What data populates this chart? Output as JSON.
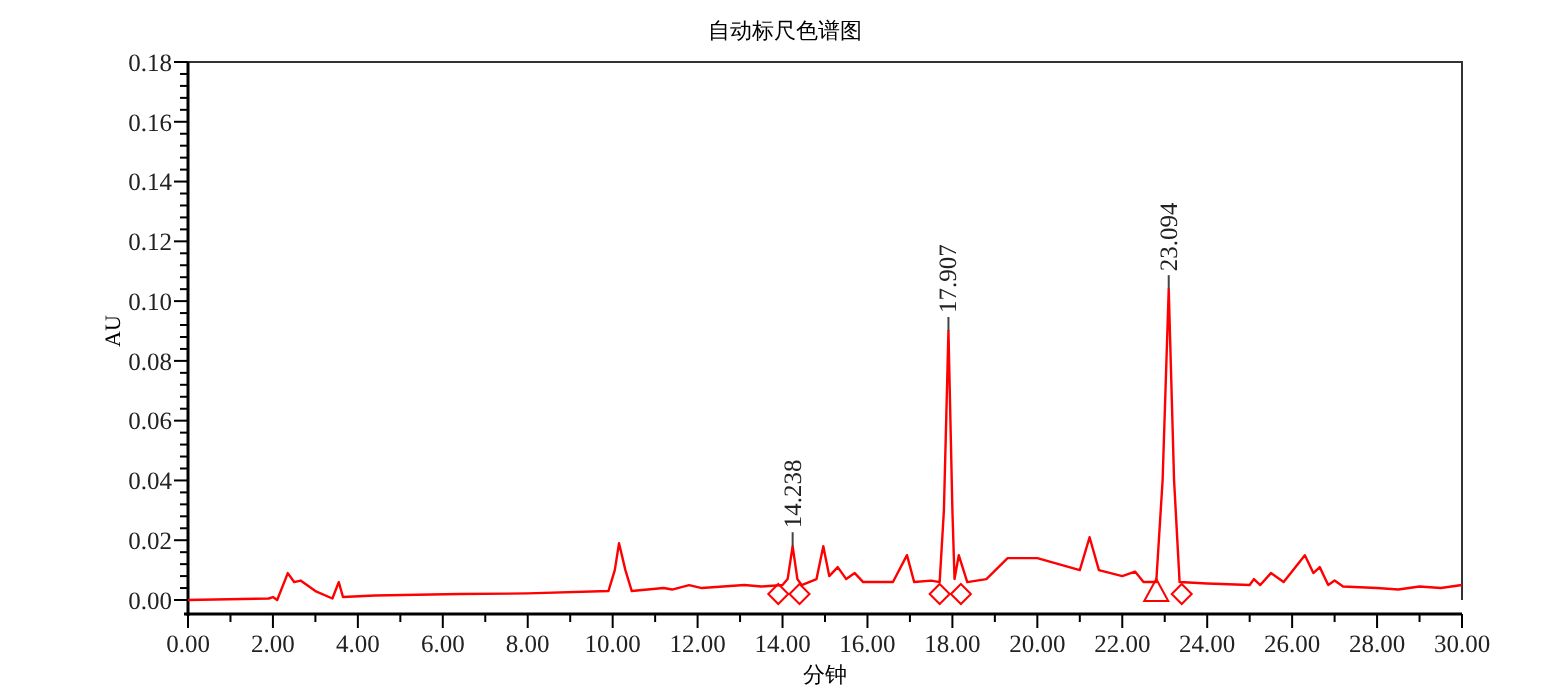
{
  "chart_data": {
    "type": "line",
    "title": "自动标尺色谱图",
    "xlabel": "分钟",
    "ylabel": "AU",
    "grid": false,
    "marker": "none",
    "line_style": "solid",
    "xlim": [
      0,
      30
    ],
    "ylim": [
      0,
      0.18
    ],
    "xticks": [
      {
        "value": 0,
        "label": "0.00"
      },
      {
        "value": 1,
        "label": null
      },
      {
        "value": 2,
        "label": "2.00"
      },
      {
        "value": 3,
        "label": null
      },
      {
        "value": 4,
        "label": "4.00"
      },
      {
        "value": 5,
        "label": null
      },
      {
        "value": 6,
        "label": "6.00"
      },
      {
        "value": 7,
        "label": null
      },
      {
        "value": 8,
        "label": "8.00"
      },
      {
        "value": 9,
        "label": null
      },
      {
        "value": 10,
        "label": "10.00"
      },
      {
        "value": 11,
        "label": null
      },
      {
        "value": 12,
        "label": "12.00"
      },
      {
        "value": 13,
        "label": null
      },
      {
        "value": 14,
        "label": "14.00"
      },
      {
        "value": 15,
        "label": null
      },
      {
        "value": 16,
        "label": "16.00"
      },
      {
        "value": 17,
        "label": null
      },
      {
        "value": 18,
        "label": "18.00"
      },
      {
        "value": 19,
        "label": null
      },
      {
        "value": 20,
        "label": "20.00"
      },
      {
        "value": 21,
        "label": null
      },
      {
        "value": 22,
        "label": "22.00"
      },
      {
        "value": 23,
        "label": null
      },
      {
        "value": 24,
        "label": "24.00"
      },
      {
        "value": 25,
        "label": null
      },
      {
        "value": 26,
        "label": "26.00"
      },
      {
        "value": 27,
        "label": null
      },
      {
        "value": 28,
        "label": "28.00"
      },
      {
        "value": 29,
        "label": null
      },
      {
        "value": 30,
        "label": "30.00"
      }
    ],
    "yticks": [
      {
        "value": 0,
        "label": "0.00"
      },
      {
        "value": 0.004,
        "label": null
      },
      {
        "value": 0.008,
        "label": null
      },
      {
        "value": 0.012,
        "label": null
      },
      {
        "value": 0.016,
        "label": null
      },
      {
        "value": 0.02,
        "label": "0.02"
      },
      {
        "value": 0.024,
        "label": null
      },
      {
        "value": 0.028,
        "label": null
      },
      {
        "value": 0.032,
        "label": null
      },
      {
        "value": 0.036,
        "label": null
      },
      {
        "value": 0.04,
        "label": "0.04"
      },
      {
        "value": 0.044,
        "label": null
      },
      {
        "value": 0.048,
        "label": null
      },
      {
        "value": 0.052,
        "label": null
      },
      {
        "value": 0.056,
        "label": null
      },
      {
        "value": 0.06,
        "label": "0.06"
      },
      {
        "value": 0.064,
        "label": null
      },
      {
        "value": 0.068,
        "label": null
      },
      {
        "value": 0.072,
        "label": null
      },
      {
        "value": 0.076,
        "label": null
      },
      {
        "value": 0.08,
        "label": "0.08"
      },
      {
        "value": 0.084,
        "label": null
      },
      {
        "value": 0.088,
        "label": null
      },
      {
        "value": 0.092,
        "label": null
      },
      {
        "value": 0.096,
        "label": null
      },
      {
        "value": 0.1,
        "label": "0.10"
      },
      {
        "value": 0.104,
        "label": null
      },
      {
        "value": 0.108,
        "label": null
      },
      {
        "value": 0.112,
        "label": null
      },
      {
        "value": 0.116,
        "label": null
      },
      {
        "value": 0.12,
        "label": "0.12"
      },
      {
        "value": 0.124,
        "label": null
      },
      {
        "value": 0.128,
        "label": null
      },
      {
        "value": 0.132,
        "label": null
      },
      {
        "value": 0.136,
        "label": null
      },
      {
        "value": 0.14,
        "label": "0.14"
      },
      {
        "value": 0.144,
        "label": null
      },
      {
        "value": 0.148,
        "label": null
      },
      {
        "value": 0.152,
        "label": null
      },
      {
        "value": 0.156,
        "label": null
      },
      {
        "value": 0.16,
        "label": "0.16"
      },
      {
        "value": 0.164,
        "label": null
      },
      {
        "value": 0.168,
        "label": null
      },
      {
        "value": 0.172,
        "label": null
      },
      {
        "value": 0.176,
        "label": null
      },
      {
        "value": 0.18,
        "label": "0.18"
      }
    ],
    "series": [
      {
        "color": "#ff0000",
        "x": [
          0,
          1.9,
          2.0,
          2.1,
          2.35,
          2.5,
          2.65,
          3.0,
          3.4,
          3.55,
          3.65,
          4.4,
          6.4,
          8.0,
          9.9,
          10.05,
          10.15,
          10.3,
          10.45,
          11.2,
          11.4,
          11.8,
          12.1,
          12.6,
          13.1,
          13.5,
          14.0,
          14.12,
          14.238,
          14.35,
          14.45,
          14.8,
          14.96,
          15.1,
          15.3,
          15.5,
          15.7,
          15.9,
          16.6,
          16.93,
          17.1,
          17.5,
          17.7,
          17.8,
          17.907,
          18.0,
          18.05,
          18.15,
          18.35,
          18.8,
          19.3,
          20.0,
          20.5,
          21.0,
          21.23,
          21.45,
          22.0,
          22.3,
          22.5,
          22.8,
          22.95,
          23.094,
          23.22,
          23.35,
          24.0,
          25.0,
          25.1,
          25.25,
          25.5,
          25.8,
          26.3,
          26.5,
          26.65,
          26.85,
          27.0,
          27.2,
          28.0,
          28.5,
          29.0,
          29.5,
          30.0
        ],
        "values": [
          0,
          0.0005,
          0.001,
          0,
          0.009,
          0.006,
          0.0065,
          0.003,
          0.0005,
          0.006,
          0.001,
          0.0015,
          0.002,
          0.0022,
          0.003,
          0.01,
          0.019,
          0.01,
          0.003,
          0.004,
          0.0035,
          0.005,
          0.004,
          0.0045,
          0.005,
          0.0045,
          0.005,
          0.007,
          0.018,
          0.007,
          0.005,
          0.007,
          0.018,
          0.008,
          0.011,
          0.007,
          0.009,
          0.006,
          0.006,
          0.015,
          0.006,
          0.0065,
          0.006,
          0.03,
          0.09,
          0.03,
          0.007,
          0.015,
          0.006,
          0.007,
          0.014,
          0.014,
          0.012,
          0.01,
          0.021,
          0.01,
          0.008,
          0.0095,
          0.006,
          0.006,
          0.04,
          0.104,
          0.04,
          0.006,
          0.0055,
          0.005,
          0.007,
          0.005,
          0.009,
          0.006,
          0.015,
          0.009,
          0.011,
          0.005,
          0.0065,
          0.0045,
          0.004,
          0.0035,
          0.0045,
          0.004,
          0.005
        ]
      },
      {
        "type": "scatter",
        "color": "#ff0000",
        "marker": "diamond",
        "x": [
          13.9,
          14.4,
          17.7,
          18.2,
          23.4
        ],
        "values": [
          0.002,
          0.002,
          0.002,
          0.002,
          0.002
        ]
      },
      {
        "type": "scatter",
        "color": "#ff0000",
        "marker": "triangle",
        "x": [
          22.8
        ],
        "values": [
          0.003
        ]
      }
    ],
    "annotations": [
      {
        "text": "14.238",
        "x": 14.238,
        "y": 0.018
      },
      {
        "text": "17.907",
        "x": 17.907,
        "y": 0.09
      },
      {
        "text": "23.094",
        "x": 23.094,
        "y": 0.104
      }
    ]
  }
}
